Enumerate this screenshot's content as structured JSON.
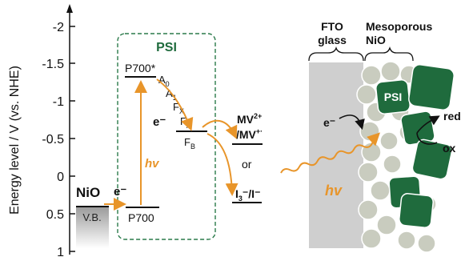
{
  "energy_axis": {
    "label": "Energy level / V (vs. NHE)",
    "ticks": [
      "-2",
      "-1.5",
      "-1",
      "-0.5",
      "0",
      "0.5",
      "1"
    ]
  },
  "left_diagram": {
    "psi_box_label": "PSI",
    "p700_star": "P700*",
    "a0": "A",
    "a0_sub": "0",
    "a1": "A",
    "a1_sub": "1",
    "fx": "F",
    "fx_sub": "X",
    "fa": "F",
    "fa_sub": "A",
    "fb": "F",
    "fb_sub": "B",
    "p700": "P700",
    "nio": "NiO",
    "vb": "V.B.",
    "electron_left": "e⁻",
    "electron_mid": "e⁻",
    "hv": "hv",
    "mv_line1": "MV",
    "mv_sup1": "2+",
    "mv_line2": "/MV",
    "mv_sup2": "+·",
    "or": "or",
    "i3": "I",
    "i3_sub": "3",
    "i3_rest": "⁻/I⁻"
  },
  "right_diagram": {
    "fto_label_1": "FTO",
    "fto_label_2": "glass",
    "meso_label_1": "Mesoporous",
    "meso_label_2": "NiO",
    "psi_label": "PSI",
    "electron": "e⁻",
    "red": "red",
    "ox": "ox",
    "hv": "hv"
  },
  "colors": {
    "green": "#1f6b3d",
    "orange": "#e8952a",
    "gray": "#cfcfcf",
    "bead": "#c9ccbf",
    "dashed": "#2a7a4a"
  }
}
